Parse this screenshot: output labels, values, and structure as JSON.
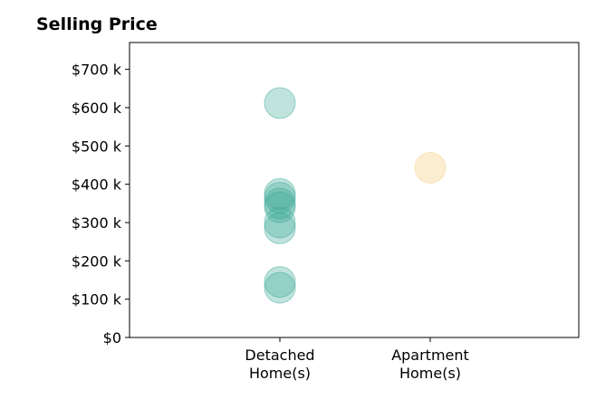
{
  "chart_data": {
    "type": "scatter",
    "title": "Selling Price",
    "xlabel": "",
    "ylabel": "",
    "categories": [
      {
        "line1": "Detached",
        "line2": "Home(s)"
      },
      {
        "line1": "Apartment",
        "line2": "Home(s)"
      }
    ],
    "yticks": [
      {
        "value": 0,
        "label": "$0"
      },
      {
        "value": 100000,
        "label": "$100 k"
      },
      {
        "value": 200000,
        "label": "$200 k"
      },
      {
        "value": 300000,
        "label": "$300 k"
      },
      {
        "value": 400000,
        "label": "$400 k"
      },
      {
        "value": 500000,
        "label": "$500 k"
      },
      {
        "value": 600000,
        "label": "$600 k"
      },
      {
        "value": 700000,
        "label": "$700 k"
      }
    ],
    "ylim": [
      0,
      770000
    ],
    "series": [
      {
        "category_index": 0,
        "color": "#3aa894",
        "opacity": 0.32,
        "values": [
          612000,
          375000,
          365000,
          350000,
          340000,
          300000,
          285000,
          145000,
          130000
        ]
      },
      {
        "category_index": 1,
        "color": "#f5deaa",
        "opacity": 0.55,
        "values": [
          443000
        ]
      }
    ],
    "grid": false,
    "legend": "none"
  }
}
